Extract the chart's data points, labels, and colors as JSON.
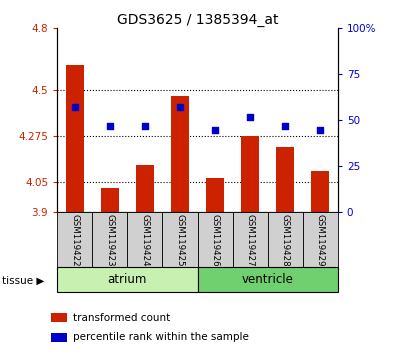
{
  "title": "GDS3625 / 1385394_at",
  "samples": [
    "GSM119422",
    "GSM119423",
    "GSM119424",
    "GSM119425",
    "GSM119426",
    "GSM119427",
    "GSM119428",
    "GSM119429"
  ],
  "transformed_counts": [
    4.62,
    4.02,
    4.13,
    4.47,
    4.07,
    4.275,
    4.22,
    4.1
  ],
  "percentile_ranks": [
    57,
    47,
    47,
    57,
    45,
    52,
    47,
    45
  ],
  "tissue_groups": [
    {
      "label": "atrium",
      "start": 0,
      "end": 4,
      "color": "#c8f0b0"
    },
    {
      "label": "ventricle",
      "start": 4,
      "end": 8,
      "color": "#70d070"
    }
  ],
  "ylim_left": [
    3.9,
    4.8
  ],
  "ylim_right": [
    0,
    100
  ],
  "yticks_left": [
    3.9,
    4.05,
    4.275,
    4.5,
    4.8
  ],
  "ytick_labels_left": [
    "3.9",
    "4.05",
    "4.275",
    "4.5",
    "4.8"
  ],
  "yticks_right": [
    0,
    25,
    50,
    75,
    100
  ],
  "ytick_labels_right": [
    "0",
    "25",
    "50",
    "75",
    "100%"
  ],
  "bar_color": "#cc2200",
  "dot_color": "#0000cc",
  "bar_width": 0.5,
  "bar_bottom": 3.9,
  "tick_label_area_color": "#d0d0d0",
  "tissue_label": "tissue",
  "legend_items": [
    {
      "color": "#cc2200",
      "label": "transformed count"
    },
    {
      "color": "#0000cc",
      "label": "percentile rank within the sample"
    }
  ]
}
